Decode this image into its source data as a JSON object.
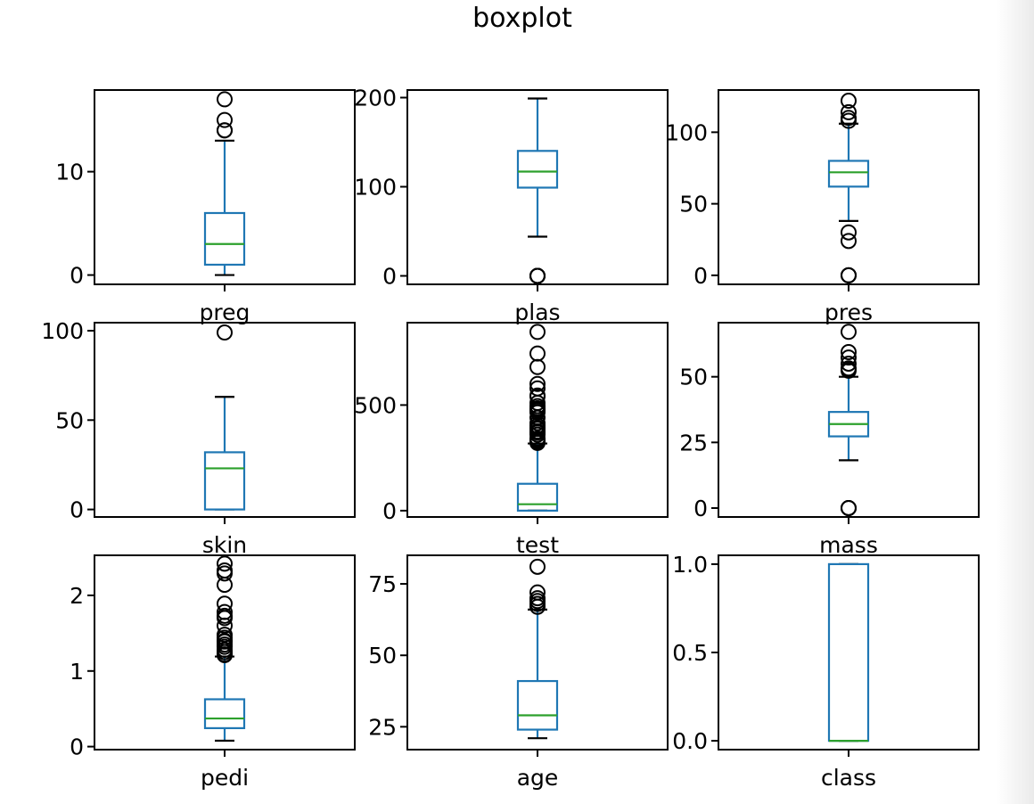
{
  "title": "boxplot",
  "colors": {
    "box": "#1f77b4",
    "median": "#2ca02c",
    "outlier": "#000000",
    "axis": "#000000",
    "background": "#ffffff"
  },
  "chart_data": [
    {
      "type": "box",
      "label": "preg",
      "ylim": [
        -0.9,
        17.9
      ],
      "yticks": [
        0,
        10
      ],
      "whisker_low": 0,
      "q1": 1,
      "median": 3,
      "q3": 6,
      "whisker_high": 13,
      "outliers": [
        14,
        14,
        15,
        17
      ]
    },
    {
      "type": "box",
      "label": "plas",
      "ylim": [
        -9.5,
        208.5
      ],
      "yticks": [
        0,
        100,
        200
      ],
      "whisker_low": 44,
      "q1": 99,
      "median": 117,
      "q3": 140.2,
      "whisker_high": 199,
      "outliers": [
        0,
        0,
        0,
        0,
        0
      ]
    },
    {
      "type": "box",
      "label": "pres",
      "ylim": [
        -6.3,
        129.5
      ],
      "yticks": [
        0,
        50,
        100
      ],
      "whisker_low": 38,
      "q1": 62,
      "median": 72,
      "q3": 80,
      "whisker_high": 106,
      "outliers": [
        0,
        0,
        0,
        24,
        30,
        108,
        110,
        114,
        122
      ]
    },
    {
      "type": "box",
      "label": "skin",
      "ylim": [
        -4.2,
        104.5
      ],
      "yticks": [
        0,
        50,
        100
      ],
      "whisker_low": 0,
      "q1": 0,
      "median": 23,
      "q3": 32,
      "whisker_high": 63,
      "outliers": [
        99
      ]
    },
    {
      "type": "box",
      "label": "test",
      "ylim": [
        -30,
        890
      ],
      "yticks": [
        0,
        500
      ],
      "whisker_low": 0,
      "q1": 0,
      "median": 30.5,
      "q3": 127.25,
      "whisker_high": 318,
      "outliers": [
        321,
        325,
        326,
        328,
        330,
        335,
        342,
        360,
        370,
        375,
        387,
        392,
        402,
        415,
        440,
        465,
        474,
        480,
        485,
        495,
        510,
        540,
        545,
        579,
        600,
        680,
        744,
        846
      ]
    },
    {
      "type": "box",
      "label": "mass",
      "ylim": [
        -3.4,
        70.6
      ],
      "yticks": [
        0,
        25,
        50
      ],
      "whisker_low": 18.2,
      "q1": 27.3,
      "median": 32,
      "q3": 36.6,
      "whisker_high": 50,
      "outliers": [
        0,
        0,
        0,
        52.3,
        52.9,
        53.2,
        55,
        57.3,
        59.4,
        67.1
      ]
    },
    {
      "type": "box",
      "label": "pedi",
      "ylim": [
        -0.04,
        2.53
      ],
      "yticks": [
        0,
        1,
        2
      ],
      "whisker_low": 0.078,
      "q1": 0.244,
      "median": 0.372,
      "q3": 0.626,
      "whisker_high": 1.191,
      "outliers": [
        1.21,
        1.22,
        1.25,
        1.28,
        1.32,
        1.35,
        1.39,
        1.4,
        1.44,
        1.48,
        1.6,
        1.7,
        1.73,
        1.78,
        1.89,
        2.14,
        2.29,
        2.33,
        2.42
      ]
    },
    {
      "type": "box",
      "label": "age",
      "ylim": [
        17,
        85
      ],
      "yticks": [
        25,
        50,
        75
      ],
      "whisker_low": 21,
      "q1": 24,
      "median": 29,
      "q3": 41,
      "whisker_high": 66,
      "outliers": [
        67,
        68,
        69,
        70,
        72,
        81
      ]
    },
    {
      "type": "box",
      "label": "class",
      "ylim": [
        -0.05,
        1.05
      ],
      "yticks": [
        0.0,
        0.5,
        1.0
      ],
      "whisker_low": 0,
      "q1": 0,
      "median": 0,
      "q3": 1,
      "whisker_high": 1,
      "outliers": []
    }
  ]
}
